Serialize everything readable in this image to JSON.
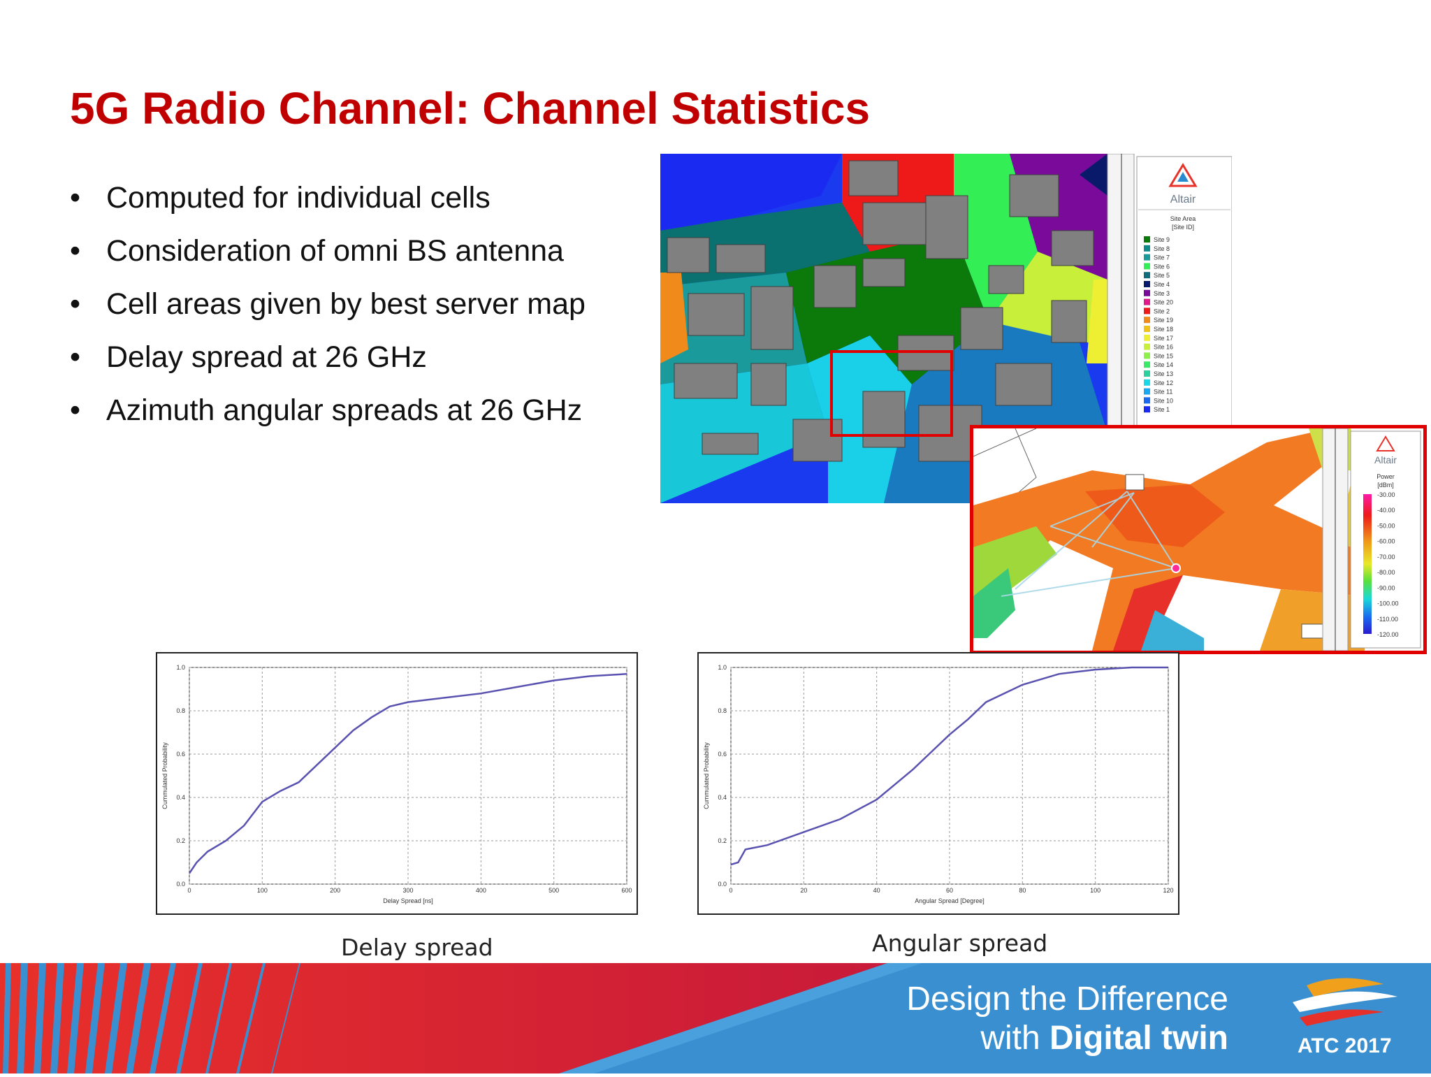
{
  "slide": {
    "title": "5G Radio Channel: Channel Statistics",
    "bullets": [
      "Computed for individual cells",
      "Consideration of omni BS antenna",
      "Cell areas given by best server map",
      "Delay spread at 26 GHz",
      "Azimuth angular spreads at 26 GHz"
    ],
    "bullet_glyph": "•"
  },
  "map": {
    "logo": "Altair",
    "legend_title": "Site Area",
    "legend_unit": "[Site ID]",
    "legend_items": [
      {
        "label": "Site 9",
        "color": "#0b7a0b"
      },
      {
        "label": "Site 8",
        "color": "#0f8a8a"
      },
      {
        "label": "Site 7",
        "color": "#1a9a9a"
      },
      {
        "label": "Site 6",
        "color": "#33ee55"
      },
      {
        "label": "Site 5",
        "color": "#0e6f7a"
      },
      {
        "label": "Site 4",
        "color": "#0a1a6a"
      },
      {
        "label": "Site 3",
        "color": "#7a0a9a"
      },
      {
        "label": "Site 20",
        "color": "#e01a8a"
      },
      {
        "label": "Site 2",
        "color": "#ee1a1a"
      },
      {
        "label": "Site 19",
        "color": "#f08a1a"
      },
      {
        "label": "Site 18",
        "color": "#f2c21a"
      },
      {
        "label": "Site 17",
        "color": "#eeee33"
      },
      {
        "label": "Site 16",
        "color": "#c8f03a"
      },
      {
        "label": "Site 15",
        "color": "#8ef04a"
      },
      {
        "label": "Site 14",
        "color": "#3ae86a"
      },
      {
        "label": "Site 13",
        "color": "#2ad0a0"
      },
      {
        "label": "Site 12",
        "color": "#1ad8e8"
      },
      {
        "label": "Site 11",
        "color": "#1aa8f0"
      },
      {
        "label": "Site 10",
        "color": "#1a6af0"
      },
      {
        "label": "Site 1",
        "color": "#1a2af0"
      }
    ]
  },
  "inset": {
    "logo": "Altair",
    "legend_title": "Power",
    "legend_unit": "[dBm]",
    "scale_labels": [
      "-30.00",
      "-40.00",
      "-50.00",
      "-60.00",
      "-70.00",
      "-80.00",
      "-90.00",
      "-100.00",
      "-110.00",
      "-120.00"
    ]
  },
  "chart_data": [
    {
      "type": "line",
      "xlabel": "Delay Spread [ns]",
      "ylabel": "Cummulated Probability",
      "xlim": [
        0,
        600
      ],
      "ylim": [
        0,
        1.0
      ],
      "xticks": [
        "0",
        "100",
        "200",
        "300",
        "400",
        "500",
        "600"
      ],
      "yticks": [
        "0.0",
        "0.2",
        "0.4",
        "0.6",
        "0.8",
        "1.0"
      ],
      "grid": true,
      "color": "#5a52b0",
      "x": [
        0,
        10,
        25,
        50,
        75,
        100,
        125,
        150,
        200,
        225,
        250,
        275,
        300,
        350,
        400,
        450,
        500,
        550,
        600
      ],
      "y": [
        0.05,
        0.1,
        0.15,
        0.2,
        0.27,
        0.38,
        0.43,
        0.47,
        0.63,
        0.71,
        0.77,
        0.82,
        0.84,
        0.86,
        0.88,
        0.91,
        0.94,
        0.96,
        0.97
      ]
    },
    {
      "type": "line",
      "xlabel": "Angular Spread [Degree]",
      "ylabel": "Cummulated Probability",
      "xlim": [
        0,
        120
      ],
      "ylim": [
        0,
        1.0
      ],
      "xticks": [
        "0",
        "20",
        "40",
        "60",
        "80",
        "100",
        "120"
      ],
      "yticks": [
        "0.0",
        "0.2",
        "0.4",
        "0.6",
        "0.8",
        "1.0"
      ],
      "grid": true,
      "color": "#5a52b0",
      "x": [
        0,
        2,
        4,
        10,
        20,
        30,
        40,
        45,
        50,
        55,
        60,
        65,
        70,
        80,
        90,
        100,
        110,
        120
      ],
      "y": [
        0.09,
        0.1,
        0.16,
        0.18,
        0.24,
        0.3,
        0.39,
        0.46,
        0.53,
        0.61,
        0.69,
        0.76,
        0.84,
        0.92,
        0.97,
        0.99,
        1.0,
        1.0
      ]
    }
  ],
  "captions": {
    "left": "Delay spread",
    "right": "Angular spread"
  },
  "footer": {
    "line1": "Design the Difference",
    "line2_prefix": "with ",
    "line2_bold": "Digital twin",
    "badge": "ATC 2017"
  }
}
